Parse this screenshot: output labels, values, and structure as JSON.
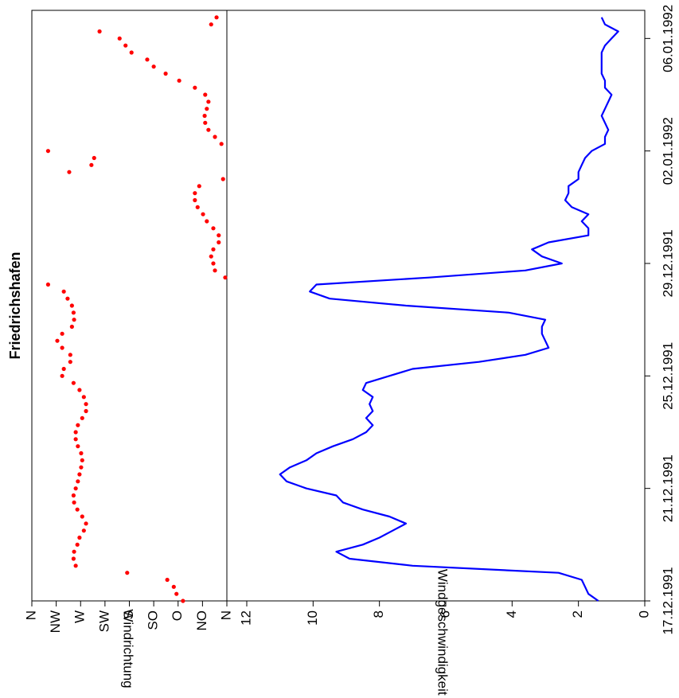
{
  "chart_data": [
    {
      "type": "scatter",
      "title": "Friedrichshafen",
      "ylabel": "Windrichtung",
      "color": "#ff0000",
      "xlim": [
        0,
        21
      ],
      "x": [
        0,
        0.25,
        0.5,
        0.75,
        1,
        1.25,
        1.5,
        1.75,
        2,
        2.25,
        2.5,
        2.75,
        3,
        3.25,
        3.5,
        3.75,
        4,
        4.25,
        4.5,
        4.75,
        5,
        5.25,
        5.5,
        5.75,
        6,
        6.25,
        6.5,
        6.75,
        7,
        7.25,
        7.5,
        7.75,
        8,
        8.25,
        8.5,
        8.75,
        9,
        9.25,
        9.5,
        9.75,
        10,
        10.25,
        10.5,
        10.75,
        11,
        11.25,
        11.5,
        11.75,
        12,
        12.25,
        12.5,
        12.75,
        13,
        13.25,
        13.5,
        13.75,
        14,
        14.25,
        14.5,
        14.75,
        15,
        15.25,
        15.5,
        15.75,
        16,
        16.25,
        16.5,
        16.75,
        17,
        17.25,
        17.5,
        17.75,
        18,
        18.25,
        18.5,
        18.75,
        19,
        19.25,
        19.5,
        19.75,
        20,
        20.25,
        20.5,
        20.75
      ],
      "values": [
        81,
        93,
        98,
        110,
        184,
        279,
        283,
        282,
        276,
        272,
        264,
        260,
        267,
        276,
        282,
        283,
        279,
        275,
        272,
        269,
        267,
        269,
        275,
        279,
        279,
        275,
        267,
        260,
        260,
        264,
        272,
        283,
        304,
        301,
        289,
        289,
        304,
        313,
        304,
        286,
        282,
        283,
        286,
        294,
        301,
        330,
        3,
        22,
        25,
        29,
        25,
        15,
        15,
        25,
        37,
        44,
        54,
        59,
        59,
        51,
        7,
        291,
        250,
        245,
        330,
        10,
        22,
        34,
        40,
        41,
        37,
        34,
        40,
        59,
        88,
        113,
        135,
        147,
        176,
        187,
        198,
        235,
        29,
        19
      ],
      "ylim": [
        0,
        360
      ],
      "yticks": [
        {
          "value": 0,
          "label": "N"
        },
        {
          "value": 45,
          "label": "NO"
        },
        {
          "value": 90,
          "label": "O"
        },
        {
          "value": 135,
          "label": "SO"
        },
        {
          "value": 180,
          "label": "S"
        },
        {
          "value": 225,
          "label": "SW"
        },
        {
          "value": 270,
          "label": "W"
        },
        {
          "value": 315,
          "label": "NW"
        },
        {
          "value": 360,
          "label": "N"
        }
      ]
    },
    {
      "type": "line",
      "ylabel": "Windgeschwindigkeit [m/s]",
      "color": "#0000ff",
      "xlim": [
        0,
        21
      ],
      "xticks": [
        {
          "value": 0,
          "label": "17.12.1991"
        },
        {
          "value": 4,
          "label": "21.12.1991"
        },
        {
          "value": 8,
          "label": "25.12.1991"
        },
        {
          "value": 12,
          "label": "29.12.1991"
        },
        {
          "value": 16,
          "label": "02.01.1992"
        },
        {
          "value": 20,
          "label": "06.01.1992"
        }
      ],
      "x": [
        0,
        0.25,
        0.5,
        0.75,
        1,
        1.25,
        1.5,
        1.75,
        2,
        2.25,
        2.5,
        2.75,
        3,
        3.25,
        3.5,
        3.75,
        4,
        4.25,
        4.5,
        4.75,
        5,
        5.25,
        5.5,
        5.75,
        6,
        6.25,
        6.5,
        6.75,
        7,
        7.25,
        7.5,
        7.75,
        8,
        8.25,
        8.5,
        8.75,
        9,
        9.25,
        9.5,
        9.75,
        10,
        10.25,
        10.5,
        10.75,
        11,
        11.25,
        11.5,
        11.75,
        12,
        12.25,
        12.5,
        12.75,
        13,
        13.25,
        13.5,
        13.75,
        14,
        14.25,
        14.5,
        14.75,
        15,
        15.25,
        15.5,
        15.75,
        16,
        16.25,
        16.5,
        16.75,
        17,
        17.25,
        17.5,
        17.75,
        18,
        18.25,
        18.5,
        18.75,
        19,
        19.25,
        19.5,
        19.75,
        20,
        20.25,
        20.5,
        20.75
      ],
      "values": [
        1.4,
        1.7,
        1.8,
        1.9,
        2.6,
        7.0,
        8.9,
        9.3,
        8.5,
        8.0,
        7.6,
        7.2,
        7.7,
        8.5,
        9.1,
        9.3,
        10.2,
        10.8,
        11.0,
        10.7,
        10.2,
        9.9,
        9.4,
        8.8,
        8.4,
        8.2,
        8.4,
        8.2,
        8.3,
        8.2,
        8.5,
        8.4,
        7.7,
        7.0,
        5.0,
        3.6,
        2.9,
        3.0,
        3.1,
        3.1,
        3.0,
        4.1,
        7.2,
        9.5,
        10.1,
        9.9,
        6.5,
        3.6,
        2.5,
        3.1,
        3.4,
        2.9,
        1.7,
        1.7,
        1.9,
        1.7,
        2.2,
        2.4,
        2.3,
        2.3,
        2.0,
        2.0,
        1.9,
        1.8,
        1.6,
        1.2,
        1.2,
        1.1,
        1.2,
        1.3,
        1.2,
        1.1,
        1.0,
        1.2,
        1.2,
        1.3,
        1.3,
        1.3,
        1.3,
        1.2,
        1.0,
        0.8,
        1.2,
        1.3
      ],
      "ylim": [
        0,
        12.6
      ],
      "yticks": [
        0,
        2,
        4,
        6,
        8,
        10,
        12
      ]
    }
  ]
}
